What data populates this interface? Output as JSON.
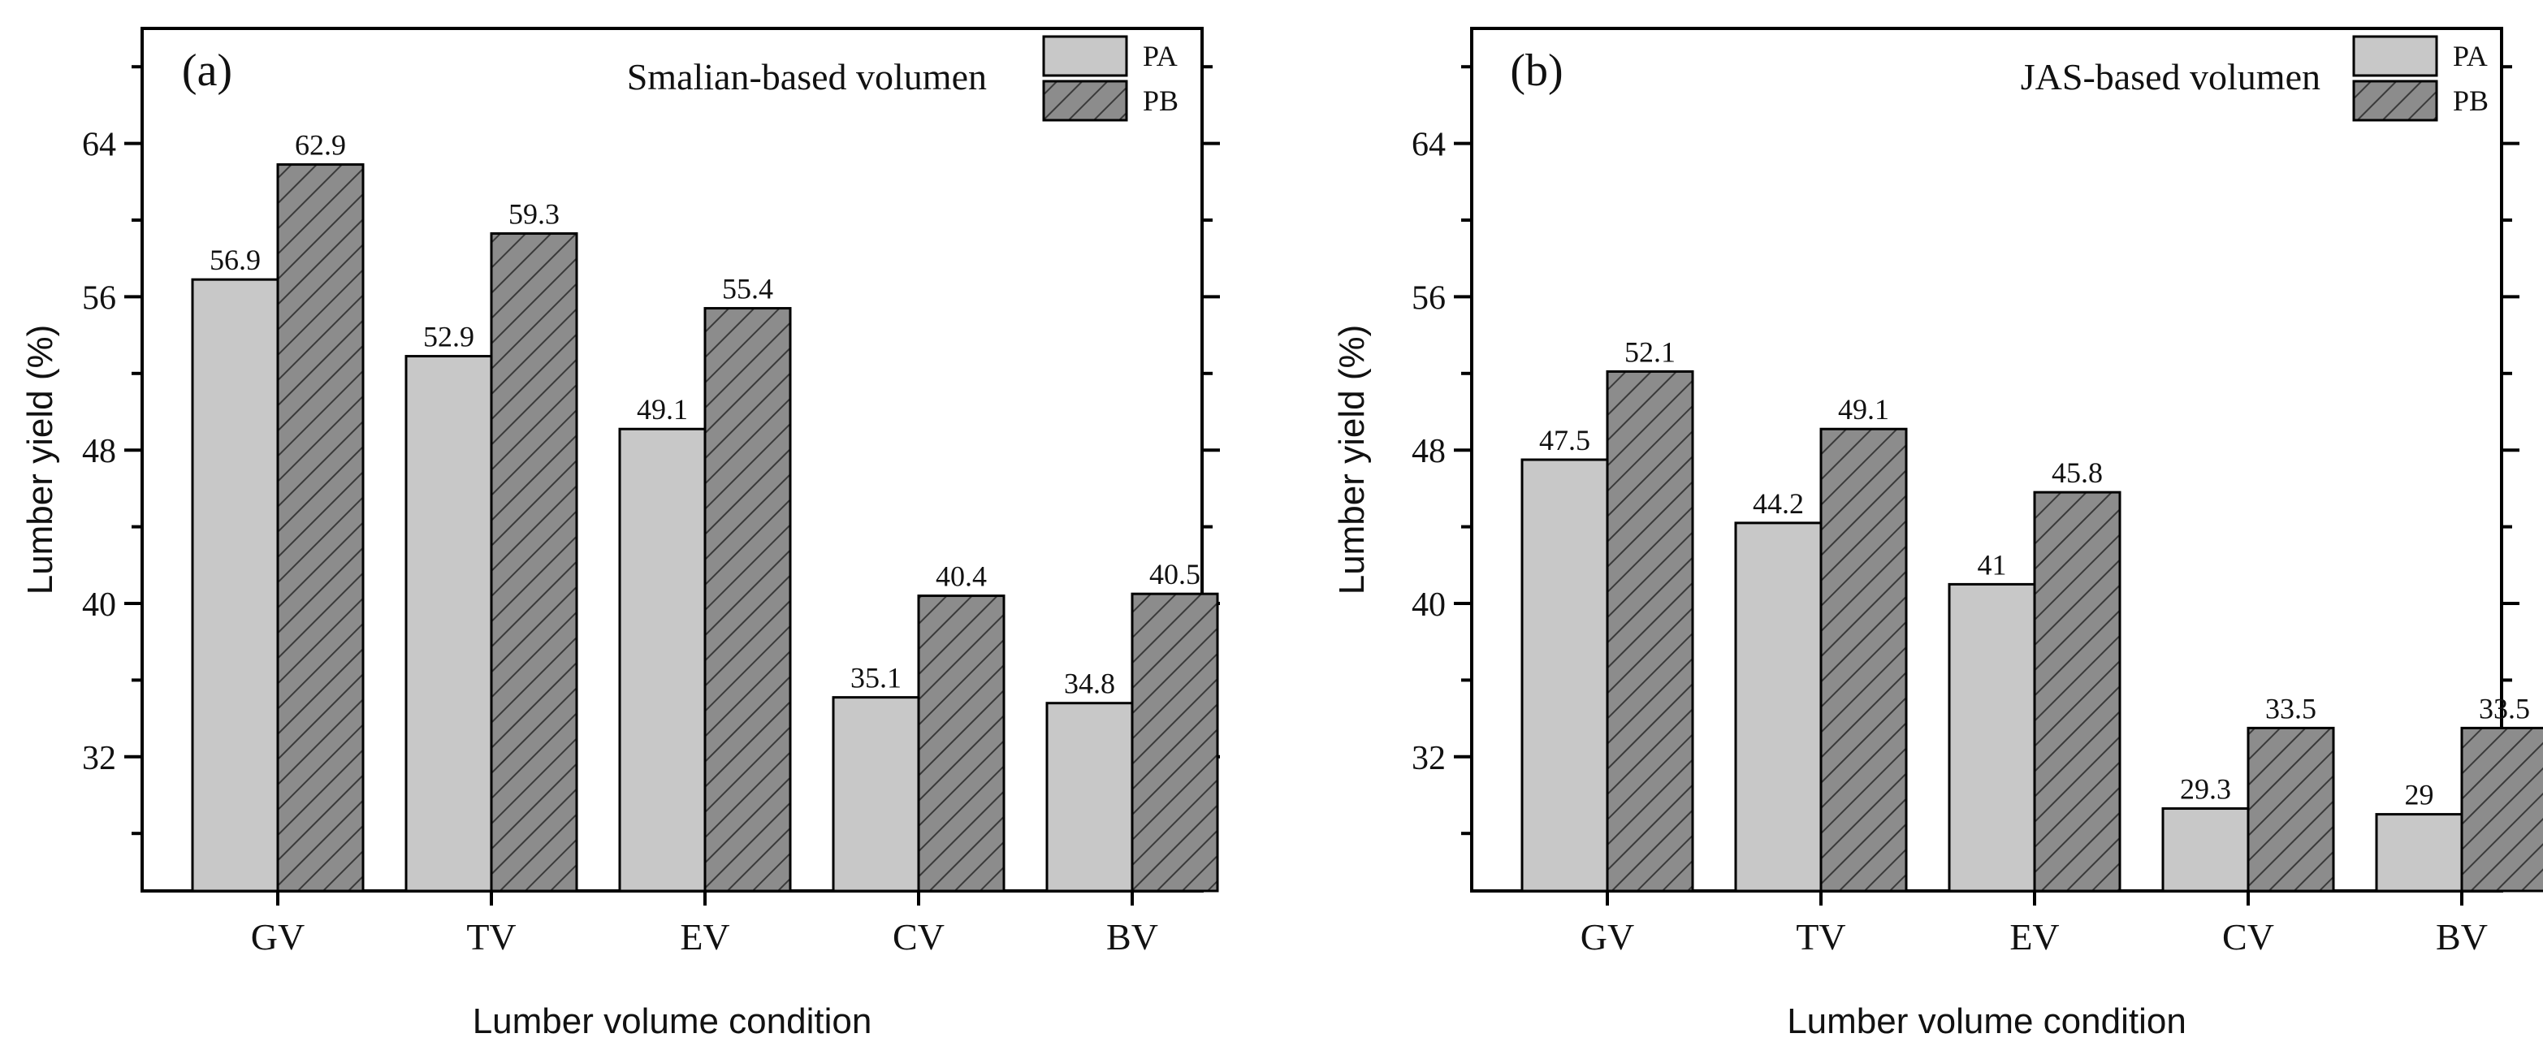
{
  "colors": {
    "pa_fill": "#c8c8c8",
    "pb_fill": "#8c8c8c",
    "hatch": "#3a3a3a",
    "stroke": "#000000"
  },
  "chart_data": [
    {
      "panel": "(a)",
      "type": "bar",
      "title": "Smalian-based volumen",
      "xlabel": "Lumber volume condition",
      "ylabel": "Lumber yield (%)",
      "categories": [
        "GV",
        "TV",
        "EV",
        "CV",
        "BV"
      ],
      "series": [
        {
          "name": "PA",
          "values": [
            56.9,
            52.9,
            49.1,
            35.1,
            34.8
          ],
          "labels": [
            "56.9",
            "52.9",
            "49.1",
            "35.1",
            "34.8"
          ]
        },
        {
          "name": "PB",
          "values": [
            62.9,
            59.3,
            55.4,
            40.4,
            40.5
          ],
          "labels": [
            "62.9",
            "59.3",
            "55.4",
            "40.4",
            "40.5"
          ]
        }
      ],
      "ylim": [
        25,
        70
      ],
      "yticks": [
        32,
        40,
        48,
        56,
        64
      ],
      "ytick_labels": [
        "32",
        "40",
        "48",
        "56",
        "64"
      ],
      "legend": "top-right"
    },
    {
      "panel": "(b)",
      "type": "bar",
      "title": "JAS-based volumen",
      "xlabel": "Lumber volume condition",
      "ylabel": "Lumber yield (%)",
      "categories": [
        "GV",
        "TV",
        "EV",
        "CV",
        "BV"
      ],
      "series": [
        {
          "name": "PA",
          "values": [
            47.5,
            44.2,
            41,
            29.3,
            29
          ],
          "labels": [
            "47.5",
            "44.2",
            "41",
            "29.3",
            "29"
          ]
        },
        {
          "name": "PB",
          "values": [
            52.1,
            49.1,
            45.8,
            33.5,
            33.5
          ],
          "labels": [
            "52.1",
            "49.1",
            "45.8",
            "33.5",
            "33.5"
          ]
        }
      ],
      "ylim": [
        25,
        70
      ],
      "yticks": [
        32,
        40,
        48,
        56,
        64
      ],
      "ytick_labels": [
        "32",
        "40",
        "48",
        "56",
        "64"
      ],
      "legend": "top-right"
    }
  ]
}
